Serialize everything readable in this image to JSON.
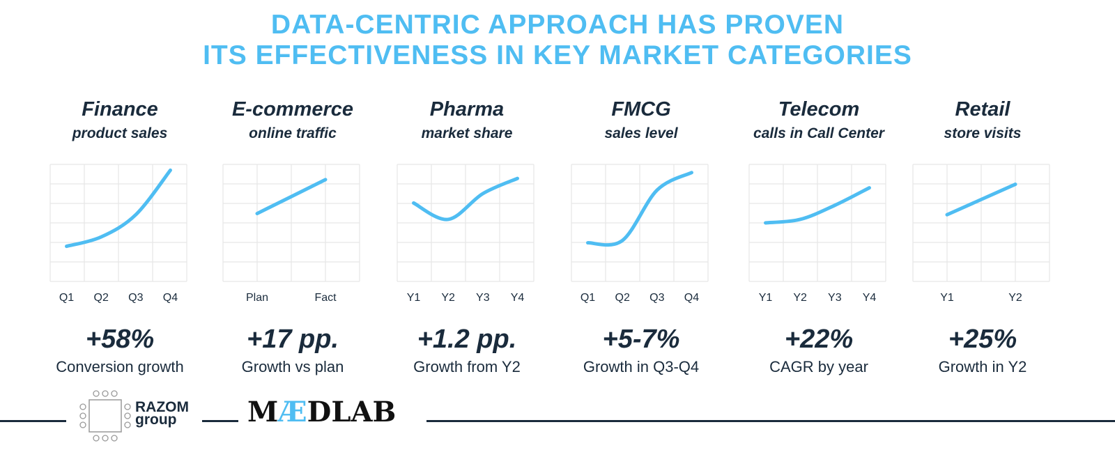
{
  "headline": {
    "line1": "DATA-CENTRIC APPROACH HAS PROVEN",
    "line2": "ITS EFFECTIVENESS IN KEY MARKET CATEGORIES"
  },
  "colors": {
    "accent": "#4fbdf2",
    "text": "#1a2b3c",
    "grid": "#e6e6e6"
  },
  "chart_data": [
    {
      "type": "line",
      "title": "Finance",
      "subtitle": "product sales",
      "categories": [
        "Q1",
        "Q2",
        "Q3",
        "Q4"
      ],
      "values": [
        30,
        38,
        57,
        95
      ],
      "ylim": [
        0,
        100
      ],
      "kpi": "+58%",
      "kpi_label": "Conversion growth",
      "grid": true
    },
    {
      "type": "line",
      "title": "E-commerce",
      "subtitle": "online traffic",
      "categories": [
        "Plan",
        "Fact"
      ],
      "values": [
        58,
        87
      ],
      "ylim": [
        0,
        100
      ],
      "kpi": "+17 pp.",
      "kpi_label": "Growth vs plan",
      "grid": true
    },
    {
      "type": "line",
      "title": "Pharma",
      "subtitle": "market share",
      "categories": [
        "Y1",
        "Y2",
        "Y3",
        "Y4"
      ],
      "values": [
        67,
        53,
        75,
        88
      ],
      "ylim": [
        0,
        100
      ],
      "kpi": "+1.2 pp.",
      "kpi_label": "Growth from Y2",
      "grid": true
    },
    {
      "type": "line",
      "title": "FMCG",
      "subtitle": "sales level",
      "categories": [
        "Q1",
        "Q2",
        "Q3",
        "Q4"
      ],
      "values": [
        33,
        35,
        78,
        93
      ],
      "ylim": [
        0,
        100
      ],
      "kpi": "+5-7%",
      "kpi_label": "Growth in Q3-Q4",
      "grid": true
    },
    {
      "type": "line",
      "title": "Telecom",
      "subtitle": "calls in Call Center",
      "categories": [
        "Y1",
        "Y2",
        "Y3",
        "Y4"
      ],
      "values": [
        50,
        53,
        65,
        80
      ],
      "ylim": [
        0,
        100
      ],
      "kpi": "+22%",
      "kpi_label": "CAGR by year",
      "grid": true
    },
    {
      "type": "line",
      "title": "Retail",
      "subtitle": "store visits",
      "categories": [
        "Y1",
        "Y2"
      ],
      "values": [
        57,
        83
      ],
      "ylim": [
        0,
        100
      ],
      "kpi": "+25%",
      "kpi_label": "Growth in Y2",
      "grid": true
    }
  ],
  "footer": {
    "razom_line1": "RAZOM",
    "razom_line2": "group",
    "maedlab_prefix": "M",
    "maedlab_ae": "Æ",
    "maedlab_suffix": "DLAB"
  }
}
